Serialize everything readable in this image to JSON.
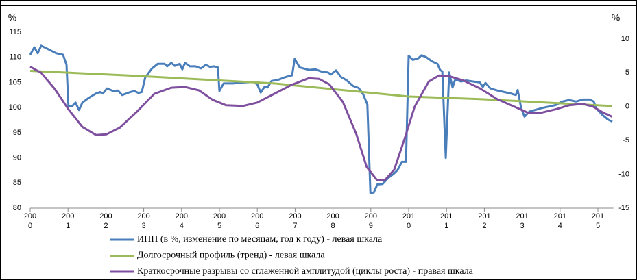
{
  "chart_data": {
    "type": "line",
    "y_label": "%",
    "y2_label": "%",
    "xlim": [
      2000,
      2015.5
    ],
    "xticks": [
      {
        "value": 2000,
        "label": [
          "200",
          "0"
        ]
      },
      {
        "value": 2001,
        "label": [
          "200",
          "1"
        ]
      },
      {
        "value": 2002,
        "label": [
          "200",
          "2"
        ]
      },
      {
        "value": 2003,
        "label": [
          "200",
          "3"
        ]
      },
      {
        "value": 2004,
        "label": [
          "200",
          "4"
        ]
      },
      {
        "value": 2005,
        "label": [
          "200",
          "5"
        ]
      },
      {
        "value": 2006,
        "label": [
          "200",
          "6"
        ]
      },
      {
        "value": 2007,
        "label": [
          "200",
          "7"
        ]
      },
      {
        "value": 2008,
        "label": [
          "200",
          "8"
        ]
      },
      {
        "value": 2009,
        "label": [
          "200",
          "9"
        ]
      },
      {
        "value": 2010,
        "label": [
          "201",
          "0"
        ]
      },
      {
        "value": 2011,
        "label": [
          "201",
          "1"
        ]
      },
      {
        "value": 2012,
        "label": [
          "201",
          "2"
        ]
      },
      {
        "value": 2013,
        "label": [
          "201",
          "3"
        ]
      },
      {
        "value": 2014,
        "label": [
          "201",
          "4"
        ]
      },
      {
        "value": 2015,
        "label": [
          "201",
          "5"
        ]
      }
    ],
    "ylim": [
      80,
      115
    ],
    "yticks": [
      80,
      85,
      90,
      95,
      100,
      105,
      110,
      115
    ],
    "y2lim": [
      -15,
      11
    ],
    "y2ticks": [
      -15,
      -10,
      -5,
      0,
      5,
      10
    ],
    "legend": "bottom",
    "series": [
      {
        "name": "ИПП (в %, изменение по месяцам, год к году) - левая шкала",
        "color": "#4a7ebb",
        "x": [
          2000.0,
          2000.11,
          2000.2,
          2000.29,
          2000.43,
          2000.56,
          2000.69,
          2000.87,
          2000.96,
          2001.01,
          2001.11,
          2001.2,
          2001.29,
          2001.38,
          2001.56,
          2001.74,
          2001.85,
          2001.92,
          2002.03,
          2002.19,
          2002.32,
          2002.43,
          2002.61,
          2002.75,
          2002.86,
          2002.95,
          2003.04,
          2003.22,
          2003.37,
          2003.55,
          2003.62,
          2003.73,
          2003.82,
          2003.95,
          2004.02,
          2004.09,
          2004.22,
          2004.37,
          2004.51,
          2004.64,
          2004.75,
          2004.86,
          2004.96,
          2005.0,
          2005.11,
          2005.36,
          2005.63,
          2005.91,
          2006.0,
          2006.09,
          2006.2,
          2006.27,
          2006.38,
          2006.54,
          2006.72,
          2006.81,
          2006.92,
          2006.99,
          2007.12,
          2007.36,
          2007.54,
          2007.72,
          2007.86,
          2007.95,
          2008.08,
          2008.21,
          2008.35,
          2008.53,
          2008.68,
          2008.8,
          2008.91,
          2008.99,
          2009.08,
          2009.17,
          2009.31,
          2009.46,
          2009.6,
          2009.71,
          2009.82,
          2009.93,
          2010.0,
          2010.11,
          2010.25,
          2010.34,
          2010.47,
          2010.62,
          2010.76,
          2010.83,
          2010.89,
          2010.98,
          2011.07,
          2011.16,
          2011.23,
          2011.38,
          2011.52,
          2011.7,
          2011.88,
          2011.96,
          2012.03,
          2012.16,
          2012.34,
          2012.52,
          2012.7,
          2012.83,
          2012.88,
          2012.97,
          2013.06,
          2013.19,
          2013.33,
          2013.51,
          2013.7,
          2013.88,
          2014.06,
          2014.24,
          2014.42,
          2014.6,
          2014.78,
          2014.89,
          2014.96,
          2015.14,
          2015.27,
          2015.38
        ],
        "values": [
          110.5,
          112,
          110.8,
          112.3,
          111.8,
          111.3,
          110.8,
          110.5,
          108.5,
          100.3,
          100.3,
          101,
          99.5,
          101,
          102,
          102.8,
          103.1,
          102.8,
          103.8,
          103.3,
          103.4,
          102.5,
          103,
          103.3,
          102.9,
          103.1,
          106,
          107.8,
          108.7,
          108.7,
          108.2,
          108.9,
          108.3,
          108.7,
          107.6,
          108.9,
          108.2,
          108.2,
          107.8,
          108.5,
          108.1,
          108.2,
          108,
          103.3,
          104.8,
          104.8,
          105,
          105.1,
          104.6,
          103,
          104.2,
          104,
          105.3,
          105.5,
          106,
          106.2,
          106.4,
          109.7,
          108,
          107.5,
          107.6,
          107.1,
          107,
          106.6,
          107.4,
          106.1,
          105.5,
          104.3,
          103.9,
          102.6,
          100.6,
          83,
          83.1,
          84.7,
          84.8,
          86,
          86.8,
          87.6,
          89.2,
          89.2,
          110.3,
          109.5,
          109.8,
          110.4,
          110,
          109.2,
          108.7,
          107.5,
          107.2,
          90,
          107,
          104,
          105.6,
          105.2,
          105.4,
          105.2,
          105,
          104.1,
          104.9,
          103.8,
          103.4,
          103.1,
          102.8,
          102.5,
          103.5,
          100,
          98.2,
          99.2,
          99.5,
          99.9,
          100.2,
          100.5,
          101.2,
          101.5,
          101.2,
          101.6,
          101.6,
          101.2,
          99.8,
          98.4,
          97.6,
          97.2
        ]
      },
      {
        "name": "Долгосрочный профиль (тренд) - левая шкала",
        "color": "#9bbb59",
        "x": [
          2000.0,
          2002.83,
          2006.45,
          2010.0,
          2011.88,
          2015.38
        ],
        "values": [
          107.3,
          106.3,
          104.8,
          102.2,
          101.7,
          100.3
        ]
      },
      {
        "name": "Краткосрочные разрывы со сглаженной амплитудой (циклы роста) - правая шкала",
        "color": "#7f4f9f",
        "axis": "y2",
        "x": [
          2000.0,
          2000.29,
          2000.65,
          2001.01,
          2001.38,
          2001.74,
          2002.01,
          2002.37,
          2002.83,
          2003.28,
          2003.73,
          2004.09,
          2004.46,
          2004.82,
          2005.18,
          2005.63,
          2006.0,
          2006.45,
          2006.9,
          2007.36,
          2007.63,
          2007.9,
          2008.26,
          2008.62,
          2008.89,
          2009.17,
          2009.38,
          2009.62,
          2009.89,
          2010.16,
          2010.53,
          2010.8,
          2011.07,
          2011.43,
          2011.88,
          2012.34,
          2012.79,
          2013.15,
          2013.51,
          2013.88,
          2014.24,
          2014.6,
          2014.87,
          2015.14,
          2015.38
        ],
        "values": [
          5.9,
          5.0,
          2.6,
          -0.4,
          -3.0,
          -4.2,
          -4.1,
          -3.1,
          -0.7,
          1.9,
          2.8,
          2.9,
          2.4,
          1.0,
          0.2,
          0.1,
          0.6,
          1.9,
          3.2,
          4.2,
          4.1,
          3.3,
          0.7,
          -4.1,
          -8.9,
          -10.9,
          -10.8,
          -9.3,
          -4.8,
          0.0,
          3.7,
          4.6,
          4.5,
          3.9,
          2.7,
          1.1,
          0.0,
          -0.9,
          -0.9,
          -0.4,
          0.2,
          0.4,
          0.0,
          -0.9,
          -1.5
        ]
      }
    ]
  }
}
